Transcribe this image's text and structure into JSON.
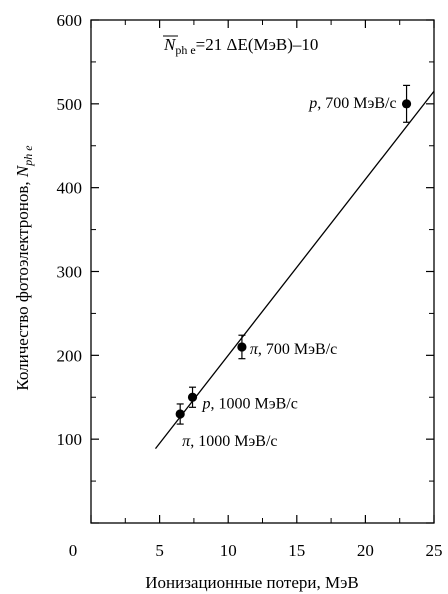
{
  "chart_data": {
    "type": "scatter",
    "xlabel": "Ионизационные потери, МэВ",
    "ylabel": "Количество фотоэлектронов, ",
    "ylabel_var": "N",
    "ylabel_sub": "ph e",
    "xlim": [
      0,
      25
    ],
    "ylim": [
      0,
      600
    ],
    "x_ticks": [
      0,
      5,
      10,
      15,
      20,
      25
    ],
    "y_ticks": [
      100,
      200,
      300,
      400,
      500,
      600
    ],
    "grid": false,
    "formula": {
      "lhs_var": "N",
      "lhs_sub": "ph e",
      "rhs": "=21 ΔE(МэВ)–10"
    },
    "points": [
      {
        "x": 6.5,
        "y": 130,
        "err": 12,
        "label_var": "π",
        "label_text": ", 1000 МэВ/c"
      },
      {
        "x": 7.4,
        "y": 150,
        "err": 12,
        "label_var": "p",
        "label_text": ", 1000 МэВ/c"
      },
      {
        "x": 11.0,
        "y": 210,
        "err": 14,
        "label_var": "π",
        "label_text": ", 700 МэВ/c"
      },
      {
        "x": 23.0,
        "y": 500,
        "err": 22,
        "label_var": "p",
        "label_text": ", 700 МэВ/c"
      }
    ],
    "fit_line": {
      "slope": 21,
      "intercept": -10,
      "x_range": [
        4.7,
        25.0
      ]
    }
  }
}
